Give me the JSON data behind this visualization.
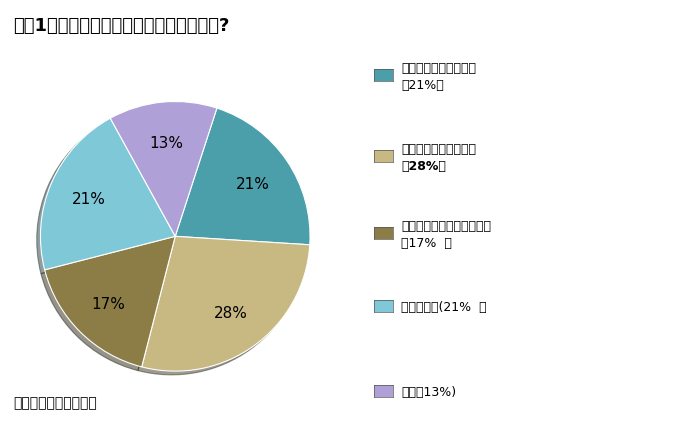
{
  "title": "调查1、您认为特斯拉为何成为热销电动车?",
  "slices": [
    21,
    28,
    17,
    21,
    13
  ],
  "colors": [
    "#4a9faa",
    "#c8b882",
    "#8b7d45",
    "#7ec8d8",
    "#b0a0d8"
  ],
  "labels": [
    "21%",
    "28%",
    "17%",
    "21%",
    "13%"
  ],
  "legend_labels": [
    "核心技术的成熟与突破\n（21%）",
    "精准定位小众高端市场\n（28%）",
    "政府补贴和碳交易收入推动\n（17%  ）",
    "不排除炒作(21%  ）",
    "其他（13%)"
  ],
  "legend_bold": [
    false,
    true,
    false,
    false,
    false
  ],
  "source_text": "来源：盖世汽车网调查",
  "background_color": "#ffffff",
  "startangle": 72
}
